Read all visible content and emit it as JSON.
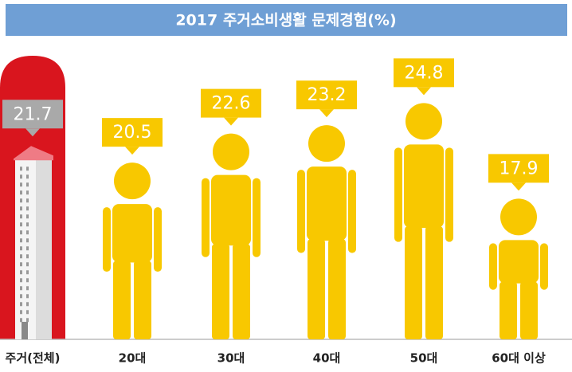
{
  "chart_data": {
    "type": "bar",
    "title": "2017 주거소비생활 문제경험(%)",
    "categories": [
      "주거(전체)",
      "20대",
      "30대",
      "40대",
      "50대",
      "60대 이상"
    ],
    "values": [
      21.7,
      20.5,
      22.6,
      23.2,
      24.8,
      17.9
    ],
    "color": "#f8c800"
  }
}
